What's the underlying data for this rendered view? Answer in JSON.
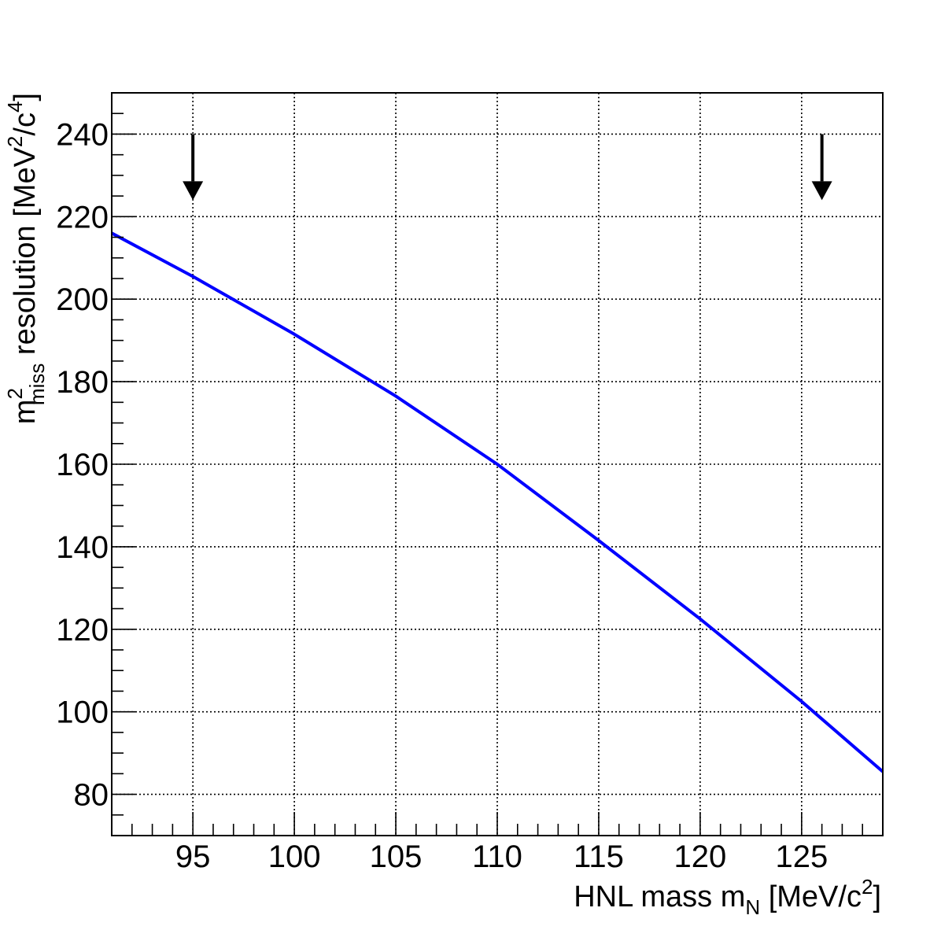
{
  "chart_data": {
    "type": "line",
    "title": "",
    "xlabel": "HNL mass m_N [MeV/c^2]",
    "ylabel": "m^2_miss resolution [MeV^2/c^4]",
    "xlabel_parts": {
      "main": "HNL mass m",
      "sub": "N",
      "unit_pre": " [MeV/c",
      "sup": "2",
      "unit_post": "]"
    },
    "ylabel_parts": {
      "m": "m",
      "sup": "2",
      "sub": "miss",
      "mid": " resolution [MeV",
      "sup1": "2",
      "div": "/c",
      "sup2": "4",
      "end": "]"
    },
    "xlim": [
      91,
      129
    ],
    "ylim": [
      70,
      250
    ],
    "xticks": [
      95,
      100,
      105,
      110,
      115,
      120,
      125
    ],
    "xticks_minor_step": 1,
    "yticks": [
      80,
      100,
      120,
      140,
      160,
      180,
      200,
      220,
      240
    ],
    "yticks_minor_step": 5,
    "grid": true,
    "series": [
      {
        "color": "#0000ff",
        "x": [
          91,
          95,
          100,
          105,
          110,
          115,
          120,
          125,
          129
        ],
        "y": [
          216,
          205.5,
          191.5,
          176.5,
          160,
          141.5,
          122.5,
          102.5,
          85.5
        ]
      }
    ],
    "arrows": [
      {
        "x": 95,
        "y_from": 240,
        "y_to": 224
      },
      {
        "x": 126,
        "y_from": 240,
        "y_to": 224
      }
    ]
  }
}
